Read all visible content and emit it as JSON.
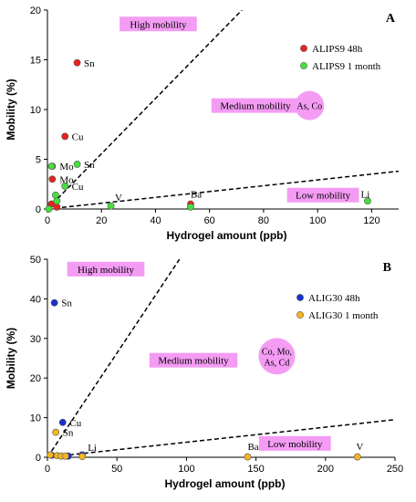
{
  "chart_data": [
    {
      "type": "scatter",
      "panel_label": "A",
      "xlabel": "Hydrogel amount (ppb)",
      "ylabel": "Mobility (%)",
      "xlim": [
        0,
        130
      ],
      "ylim": [
        0,
        20
      ],
      "xticks": [
        0,
        20,
        40,
        60,
        80,
        100,
        120
      ],
      "yticks": [
        0,
        5,
        10,
        15,
        20
      ],
      "legend_position": "right",
      "series": [
        {
          "name": "ALIPS9 48h",
          "color": "#e8231e",
          "points": [
            {
              "x": 11,
              "y": 14.7
            },
            {
              "x": 6.5,
              "y": 7.3
            },
            {
              "x": 1.8,
              "y": 4.3
            },
            {
              "x": 1.8,
              "y": 3.0
            },
            {
              "x": 3.5,
              "y": 0.2
            },
            {
              "x": 1.5,
              "y": 0.5
            },
            {
              "x": 53,
              "y": 0.5
            }
          ]
        },
        {
          "name": "ALIPS9 1 month",
          "color": "#44e13c",
          "points": [
            {
              "x": 1.5,
              "y": 4.3
            },
            {
              "x": 11,
              "y": 4.5
            },
            {
              "x": 6.5,
              "y": 2.3
            },
            {
              "x": 3,
              "y": 1.4
            },
            {
              "x": 3.5,
              "y": 0.8
            },
            {
              "x": 23.5,
              "y": 0.3
            },
            {
              "x": 53,
              "y": 0.2
            },
            {
              "x": 118.5,
              "y": 0.8
            },
            {
              "x": 0.5,
              "y": 0.0
            }
          ]
        }
      ],
      "point_labels": [
        {
          "text": "Sn",
          "x": 13.5,
          "y": 14.7
        },
        {
          "text": "Cu",
          "x": 9,
          "y": 7.3
        },
        {
          "text": "Mo",
          "x": 4.5,
          "y": 4.3
        },
        {
          "text": "Mo",
          "x": 4.5,
          "y": 3.0
        },
        {
          "text": "Sn",
          "x": 13.5,
          "y": 4.5
        },
        {
          "text": "Cu",
          "x": 9,
          "y": 2.3
        },
        {
          "text": "V",
          "x": 25,
          "y": 1.2
        },
        {
          "text": "Ba",
          "x": 53,
          "y": 1.5
        },
        {
          "text": "Li",
          "x": 116,
          "y": 1.5
        }
      ],
      "trend_lines": [
        {
          "from": [
            0,
            0
          ],
          "to": [
            72,
            20
          ]
        },
        {
          "from": [
            0,
            0
          ],
          "to": [
            130,
            3.8
          ]
        }
      ],
      "zones": [
        {
          "text": "High mobility",
          "x": 41,
          "y": 18.6
        },
        {
          "text": "Medium mobility",
          "x": 77,
          "y": 10.4
        },
        {
          "text": "Low mobility",
          "x": 102,
          "y": 1.4
        }
      ],
      "bubble": {
        "text": [
          "As, Co"
        ],
        "x": 97,
        "y": 10.4
      }
    },
    {
      "type": "scatter",
      "panel_label": "B",
      "xlabel": "Hydrogel amount (ppb)",
      "ylabel": "Mobility (%)",
      "xlim": [
        0,
        250
      ],
      "ylim": [
        0,
        50
      ],
      "xticks": [
        0,
        50,
        100,
        150,
        200,
        250
      ],
      "yticks": [
        0,
        10,
        20,
        30,
        40,
        50
      ],
      "legend_position": "right",
      "series": [
        {
          "name": "ALIG30 48h",
          "color": "#1a2fcf",
          "points": [
            {
              "x": 5,
              "y": 39
            },
            {
              "x": 11,
              "y": 8.8
            },
            {
              "x": 3,
              "y": 0.5
            },
            {
              "x": 15,
              "y": 0.3
            },
            {
              "x": 25,
              "y": 0.6
            }
          ]
        },
        {
          "name": "ALIG30 1 month",
          "color": "#f5b51e",
          "points": [
            {
              "x": 6,
              "y": 6.3
            },
            {
              "x": 2,
              "y": 0.6
            },
            {
              "x": 7,
              "y": 0.4
            },
            {
              "x": 10,
              "y": 0.3
            },
            {
              "x": 13,
              "y": 0.3
            },
            {
              "x": 25,
              "y": 0.2
            },
            {
              "x": 144,
              "y": 0.1
            },
            {
              "x": 223,
              "y": 0.1
            }
          ]
        }
      ],
      "point_labels": [
        {
          "text": "Sn",
          "x": 10,
          "y": 39
        },
        {
          "text": "Cu",
          "x": 16,
          "y": 8.8
        },
        {
          "text": "Sn",
          "x": 11,
          "y": 6.3
        },
        {
          "text": "Li",
          "x": 29,
          "y": 2.5
        },
        {
          "text": "Ba",
          "x": 144,
          "y": 2.8
        },
        {
          "text": "V",
          "x": 222,
          "y": 2.8
        }
      ],
      "trend_lines": [
        {
          "from": [
            0,
            0
          ],
          "to": [
            95,
            50
          ]
        },
        {
          "from": [
            0,
            0
          ],
          "to": [
            250,
            9.5
          ]
        }
      ],
      "zones": [
        {
          "text": "High mobility",
          "x": 42,
          "y": 47.5
        },
        {
          "text": "Medium mobility",
          "x": 105,
          "y": 24.5
        },
        {
          "text": "Low mobility",
          "x": 178,
          "y": 3.5
        }
      ],
      "bubble": {
        "text": [
          "Co, Mo,",
          "As, Cd"
        ],
        "x": 165,
        "y": 25.5
      }
    }
  ]
}
